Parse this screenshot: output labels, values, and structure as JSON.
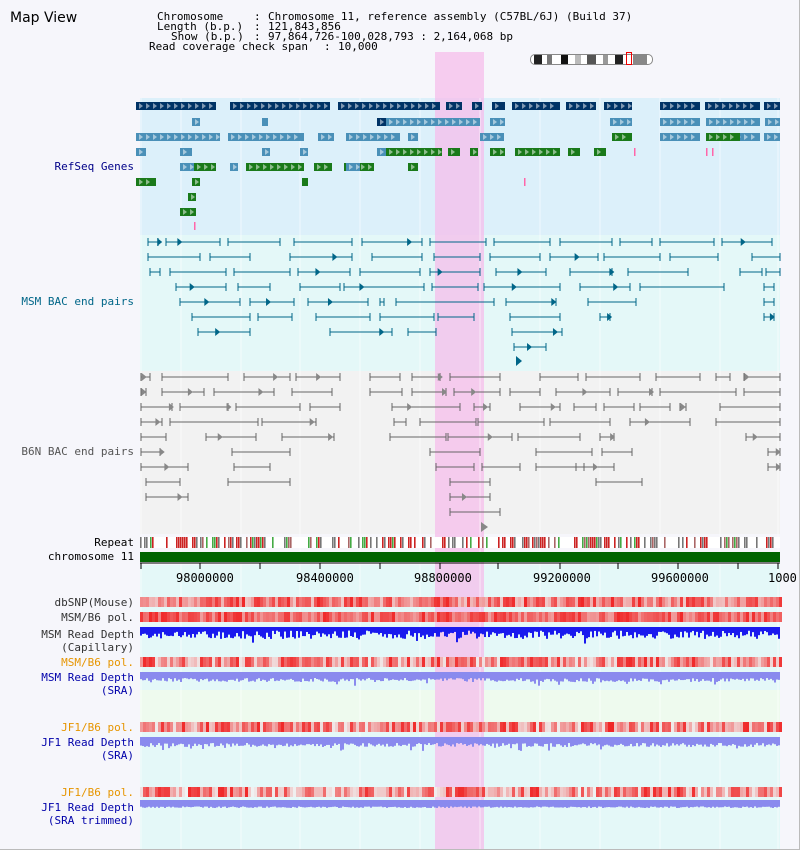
{
  "page": {
    "title": "Map View"
  },
  "info": {
    "chromosome_key": "Chromosome",
    "chromosome_val": "Chromosome 11, reference assembly (C57BL/6J) (Build 37)",
    "length_key": "Length (b.p.)",
    "length_val": "121,843,856",
    "show_key": "Show (b.p.)",
    "show_val": "97,864,726-100,028,793 : 2,164,068 bp",
    "coverage_key": "Read coverage check span",
    "coverage_val": "10,000"
  },
  "tracks": {
    "refseq": "RefSeq Genes",
    "msm_bac": "MSM BAC end pairs",
    "b6n_bac": "B6N BAC end pairs",
    "repeat": "Repeat",
    "chromosome": "chromosome 11",
    "dbsnp": "dbSNP(Mouse)",
    "msm_b6_pol": "MSM/B6 pol.",
    "msm_read_depth_cap": "MSM Read Depth\n(Capillary)",
    "msm_b6_pol2": "MSM/B6 pol.",
    "msm_read_depth_sra": "MSM Read Depth\n(SRA)",
    "jf1_b6_pol": "JF1/B6 pol.",
    "jf1_read_depth_sra": "JF1 Read Depth\n(SRA)",
    "jf1_b6_pol2": "JF1/B6 pol.",
    "jf1_read_depth_trim": "JF1 Read Depth\n(SRA trimmed)"
  },
  "axis": {
    "ticks": [
      "98000000",
      "98400000",
      "98800000",
      "99200000",
      "99600000",
      "1000"
    ]
  },
  "colors": {
    "refseq_bg": "#dcf0fa",
    "msm_bac_bg": "#e4f8f8",
    "b6n_bac_bg": "#f0f0f0",
    "highlight": "#f5c8ee",
    "chromosome": "#006400",
    "gene_dark": "#003366",
    "gene_mid": "#4a90b8",
    "gene_green": "#1a7a1a",
    "msm_line": "#006688",
    "b6n_line": "#666666",
    "depth_cap": "#1a1aee",
    "depth_sra": "#8a8aee"
  }
}
